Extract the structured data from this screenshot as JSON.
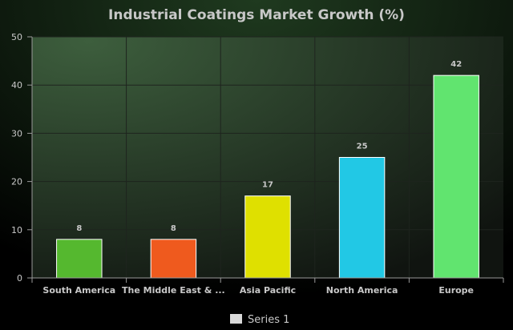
{
  "chart_data": {
    "type": "bar",
    "title": "Industrial Coatings Market Growth (%)",
    "xlabel": "",
    "ylabel": "",
    "categories": [
      "South America",
      "The Middle East & ...",
      "Asia Pacific",
      "North America",
      "Europe"
    ],
    "series": [
      {
        "name": "Series 1",
        "values": [
          8,
          8,
          17,
          25,
          42
        ],
        "colors": [
          "#55b82f",
          "#ef5a1e",
          "#dfe000",
          "#22c8e5",
          "#61e46f"
        ],
        "data_labels": [
          "8",
          "8",
          "17",
          "25",
          "42"
        ]
      }
    ],
    "ylim": [
      0,
      50
    ],
    "yticks": [
      0,
      10,
      20,
      30,
      40,
      50
    ],
    "ytick_labels": [
      "0",
      "10",
      "20",
      "30",
      "40",
      "50"
    ],
    "grid": true,
    "legend": {
      "position": "bottom",
      "swatch_color": "#d9d9d9"
    },
    "colors": {
      "page_background": "#000000",
      "plot_background_top": "#3d5e3d",
      "plot_background_bottom": "#101410",
      "text": "#c8c8c8",
      "grid": "#1e241e",
      "axis": "#9a9a9a"
    }
  }
}
